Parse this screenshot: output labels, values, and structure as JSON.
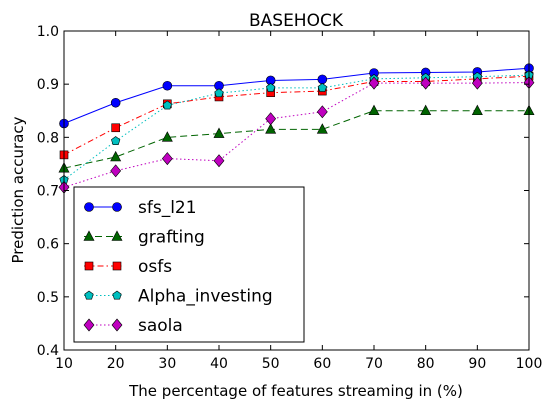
{
  "chart_data": {
    "type": "line",
    "title": "BASEHOCK",
    "xlabel": "The percentage of features streaming in (%)",
    "ylabel": "Prediction accuracy",
    "xlim": [
      10,
      100
    ],
    "ylim": [
      0.4,
      1.0
    ],
    "x": [
      10,
      20,
      30,
      40,
      50,
      60,
      70,
      80,
      90,
      100
    ],
    "x_ticks": [
      "10",
      "20",
      "30",
      "40",
      "50",
      "60",
      "70",
      "80",
      "90",
      "100"
    ],
    "y_ticks": [
      "0.4",
      "0.5",
      "0.6",
      "0.7",
      "0.8",
      "0.9",
      "1.0"
    ],
    "grid": false,
    "legend_position": "bottom-left",
    "series": [
      {
        "name": "sfs_l21",
        "color": "#0000ff",
        "marker": "circle",
        "dash": "solid",
        "values": [
          0.826,
          0.865,
          0.897,
          0.897,
          0.907,
          0.909,
          0.921,
          0.922,
          0.923,
          0.93
        ]
      },
      {
        "name": "grafting",
        "color": "#006400",
        "marker": "triangle",
        "dash": "dashed",
        "values": [
          0.742,
          0.763,
          0.8,
          0.807,
          0.815,
          0.815,
          0.85,
          0.85,
          0.85,
          0.85
        ]
      },
      {
        "name": "osfs",
        "color": "#ff0000",
        "marker": "square",
        "dash": "dashdot",
        "values": [
          0.767,
          0.818,
          0.863,
          0.876,
          0.884,
          0.887,
          0.905,
          0.905,
          0.91,
          0.915
        ]
      },
      {
        "name": "Alpha_investing",
        "color": "#00bfbf",
        "marker": "pentagon",
        "dash": "dotted",
        "values": [
          0.72,
          0.793,
          0.86,
          0.883,
          0.893,
          0.893,
          0.91,
          0.912,
          0.914,
          0.917
        ]
      },
      {
        "name": "saola",
        "color": "#bf00bf",
        "marker": "diamond",
        "dash": "dotted",
        "values": [
          0.706,
          0.737,
          0.76,
          0.756,
          0.835,
          0.848,
          0.902,
          0.902,
          0.902,
          0.903
        ]
      }
    ]
  }
}
